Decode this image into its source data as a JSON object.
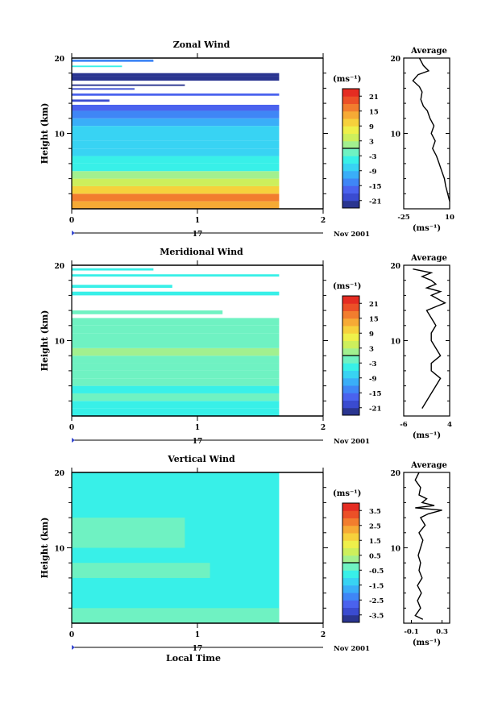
{
  "chart_data": [
    {
      "type": "heatmap",
      "title": "Zonal Wind",
      "ylabel": "Height (km)",
      "xlabel": "",
      "xticks": [
        "0",
        "1",
        "2"
      ],
      "yticks": [
        "10",
        "20"
      ],
      "xlim": [
        0,
        2
      ],
      "ylim": [
        0,
        20
      ],
      "date_label": "17",
      "month_label": "Nov 2001",
      "data_end_x": 1.65,
      "cbar_unit": "(ms⁻¹)",
      "cbar_ticks": [
        "21",
        "15",
        "9",
        "3",
        "-3",
        "-9",
        "-15",
        "-21"
      ],
      "cbar_range": [
        -24,
        24
      ],
      "cbar_mark": 0,
      "profile_title": "Average",
      "profile_xlabel": "(ms⁻¹)",
      "profile_xticks": [
        "-25",
        "10"
      ],
      "profile_xlim": [
        -25,
        10
      ],
      "profile": {
        "height": [
          1,
          2,
          3,
          4,
          5,
          6,
          7,
          8,
          9,
          10,
          11,
          12,
          13,
          13.6,
          14.5,
          15.5,
          16.2,
          17,
          17.8,
          18.3,
          19,
          20
        ],
        "value": [
          10,
          8.5,
          7,
          6,
          4,
          2,
          0,
          -3,
          -1,
          -4,
          -2,
          -5,
          -7,
          -10,
          -12,
          -11,
          -13,
          -18,
          -14,
          -6,
          -10,
          -13
        ]
      },
      "bands": [
        {
          "y0": 0,
          "y1": 1,
          "value": 12,
          "x1": 1.65
        },
        {
          "y0": 1,
          "y1": 2,
          "value": 15,
          "x1": 1.65
        },
        {
          "y0": 2,
          "y1": 3,
          "value": 9,
          "x1": 1.65
        },
        {
          "y0": 3,
          "y1": 4,
          "value": 5,
          "x1": 1.65
        },
        {
          "y0": 4,
          "y1": 5,
          "value": 1,
          "x1": 1.65
        },
        {
          "y0": 5,
          "y1": 6,
          "value": -4,
          "x1": 1.65
        },
        {
          "y0": 6,
          "y1": 7,
          "value": -6,
          "x1": 1.65
        },
        {
          "y0": 7,
          "y1": 8,
          "value": -8,
          "x1": 1.65
        },
        {
          "y0": 8,
          "y1": 9,
          "value": -9,
          "x1": 1.65
        },
        {
          "y0": 9,
          "y1": 10,
          "value": -8,
          "x1": 1.65
        },
        {
          "y0": 10,
          "y1": 11,
          "value": -9,
          "x1": 1.65
        },
        {
          "y0": 11,
          "y1": 12,
          "value": -12,
          "x1": 1.65
        },
        {
          "y0": 12,
          "y1": 13,
          "value": -15,
          "x1": 1.65
        },
        {
          "y0": 13,
          "y1": 13.8,
          "value": -18,
          "x1": 1.65
        },
        {
          "y0": 14.2,
          "y1": 14.5,
          "value": -20,
          "x1": 0.3
        },
        {
          "y0": 15,
          "y1": 15.3,
          "value": -18,
          "x1": 1.65
        },
        {
          "y0": 15.8,
          "y1": 16,
          "value": -21,
          "x1": 0.5
        },
        {
          "y0": 16.3,
          "y1": 16.5,
          "value": -22,
          "x1": 0.9
        },
        {
          "y0": 17,
          "y1": 17.6,
          "value": -24,
          "x1": 1.65
        },
        {
          "y0": 17.6,
          "y1": 18,
          "value": -22,
          "x1": 1.65
        },
        {
          "y0": 18.8,
          "y1": 19,
          "value": -5,
          "x1": 0.4
        },
        {
          "y0": 19.5,
          "y1": 19.8,
          "value": -15,
          "x1": 0.65
        }
      ]
    },
    {
      "type": "heatmap",
      "title": "Meridional Wind",
      "ylabel": "Height (km)",
      "xlabel": "",
      "xticks": [
        "0",
        "1",
        "2"
      ],
      "yticks": [
        "10",
        "20"
      ],
      "xlim": [
        0,
        2
      ],
      "ylim": [
        0,
        20
      ],
      "date_label": "17",
      "month_label": "Nov 2001",
      "data_end_x": 1.65,
      "cbar_unit": "(ms⁻¹)",
      "cbar_ticks": [
        "21",
        "15",
        "9",
        "3",
        "-3",
        "-9",
        "-15",
        "-21"
      ],
      "cbar_range": [
        -24,
        24
      ],
      "cbar_mark": 0,
      "profile_title": "Average",
      "profile_xlabel": "(ms⁻¹)",
      "profile_xticks": [
        "-6",
        "4"
      ],
      "profile_xlim": [
        -6,
        4
      ],
      "profile": {
        "height": [
          1,
          2,
          3,
          4,
          5,
          6,
          7,
          8,
          9,
          10,
          11,
          12,
          13,
          14,
          14.5,
          15,
          16,
          16.5,
          17,
          17.5,
          18,
          18.5,
          19,
          19.5
        ],
        "value": [
          -2,
          -1,
          0,
          1,
          2,
          0,
          0,
          2,
          1,
          0,
          0,
          1,
          0,
          -1,
          1,
          3,
          0,
          2,
          -1,
          1,
          0,
          -2,
          0,
          -4
        ]
      },
      "bands": [
        {
          "y0": 0,
          "y1": 1,
          "value": -5,
          "x1": 1.65
        },
        {
          "y0": 1,
          "y1": 2,
          "value": -4,
          "x1": 1.65
        },
        {
          "y0": 2,
          "y1": 3,
          "value": -3,
          "x1": 1.65
        },
        {
          "y0": 3,
          "y1": 4,
          "value": -4,
          "x1": 1.65
        },
        {
          "y0": 4,
          "y1": 5,
          "value": -2,
          "x1": 1.65
        },
        {
          "y0": 5,
          "y1": 6,
          "value": -3,
          "x1": 1.65
        },
        {
          "y0": 6,
          "y1": 7,
          "value": -2,
          "x1": 1.65
        },
        {
          "y0": 7,
          "y1": 8,
          "value": -1,
          "x1": 1.65
        },
        {
          "y0": 8,
          "y1": 9,
          "value": 0,
          "x1": 1.65
        },
        {
          "y0": 9,
          "y1": 10,
          "value": -2,
          "x1": 1.65
        },
        {
          "y0": 10,
          "y1": 11,
          "value": -1,
          "x1": 1.65
        },
        {
          "y0": 11,
          "y1": 12,
          "value": -2,
          "x1": 1.65
        },
        {
          "y0": 12,
          "y1": 13,
          "value": -1,
          "x1": 1.65
        },
        {
          "y0": 13.5,
          "y1": 14,
          "value": -3,
          "x1": 1.2
        },
        {
          "y0": 16,
          "y1": 16.5,
          "value": -4,
          "x1": 1.65
        },
        {
          "y0": 17,
          "y1": 17.4,
          "value": -5,
          "x1": 0.8
        },
        {
          "y0": 18.5,
          "y1": 18.8,
          "value": -6,
          "x1": 1.65
        },
        {
          "y0": 19.3,
          "y1": 19.6,
          "value": -4,
          "x1": 0.65
        }
      ]
    },
    {
      "type": "heatmap",
      "title": "Vertical Wind",
      "ylabel": "Height (km)",
      "xlabel": "Local Time",
      "xticks": [
        "0",
        "1",
        "2"
      ],
      "yticks": [
        "10",
        "20"
      ],
      "xlim": [
        0,
        2
      ],
      "ylim": [
        0,
        20
      ],
      "date_label": "17",
      "month_label": "Nov 2001",
      "data_end_x": 1.65,
      "cbar_unit": "(ms⁻¹)",
      "cbar_ticks": [
        "3.5",
        "2.5",
        "1.5",
        "0.5",
        "-0.5",
        "-1.5",
        "-2.5",
        "-3.5"
      ],
      "cbar_range": [
        -4,
        4
      ],
      "cbar_mark": 0,
      "profile_title": "Average",
      "profile_xlabel": "(ms⁻¹)",
      "profile_xticks": [
        "-0.1",
        "0.3"
      ],
      "profile_xlim": [
        -0.2,
        0.4
      ],
      "profile": {
        "height": [
          0.5,
          1,
          2,
          3,
          4,
          5,
          6,
          7,
          8,
          9,
          10,
          11,
          12,
          13,
          14,
          14.5,
          15,
          15.3,
          15.6,
          16,
          16.5,
          17,
          18,
          19,
          20
        ],
        "value": [
          0.05,
          -0.05,
          0.02,
          -0.02,
          0.03,
          -0.02,
          0.04,
          0.0,
          0.02,
          -0.01,
          0.02,
          0.05,
          0.0,
          0.08,
          0.02,
          0.12,
          0.3,
          -0.05,
          0.2,
          0.04,
          0.1,
          0.0,
          0.02,
          -0.05,
          0.0
        ]
      },
      "bands": [
        {
          "y0": 0,
          "y1": 20,
          "value": -0.8,
          "x1": 1.65
        },
        {
          "y0": 0,
          "y1": 2,
          "value": -0.2,
          "x1": 1.65
        },
        {
          "y0": 6,
          "y1": 8,
          "value": -0.3,
          "x1": 1.1
        },
        {
          "y0": 10,
          "y1": 14,
          "value": -0.2,
          "x1": 0.9
        }
      ]
    }
  ]
}
